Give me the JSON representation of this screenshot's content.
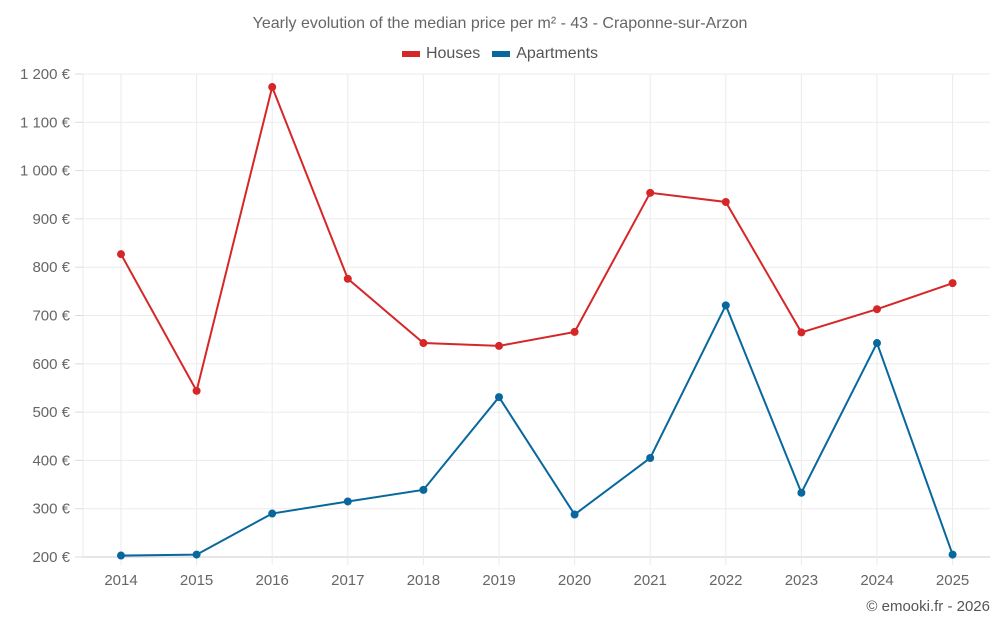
{
  "header": {
    "title": "Yearly evolution of the median price per m² - 43 - Craponne-sur-Arzon"
  },
  "legend": [
    {
      "label": "Houses",
      "color": "#d62728"
    },
    {
      "label": "Apartments",
      "color": "#08689e"
    }
  ],
  "footer": {
    "credit": "© emooki.fr - 2026"
  },
  "chart_data": {
    "type": "line",
    "title": "Yearly evolution of the median price per m² - 43 - Craponne-sur-Arzon",
    "xlabel": "",
    "ylabel": "",
    "categories": [
      "2014",
      "2015",
      "2016",
      "2017",
      "2018",
      "2019",
      "2020",
      "2021",
      "2022",
      "2023",
      "2024",
      "2025"
    ],
    "series": [
      {
        "name": "Houses",
        "color": "#d62728",
        "values": [
          827,
          544,
          1173,
          776,
          643,
          637,
          666,
          954,
          935,
          665,
          713,
          767
        ]
      },
      {
        "name": "Apartments",
        "color": "#08689e",
        "values": [
          203,
          205,
          290,
          315,
          339,
          531,
          288,
          405,
          721,
          333,
          643,
          205
        ]
      }
    ],
    "ylim": [
      200,
      1200
    ],
    "yticks": [
      200,
      300,
      400,
      500,
      600,
      700,
      800,
      900,
      1000,
      1100,
      1200
    ],
    "ytick_labels": [
      "200 €",
      "300 €",
      "400 €",
      "500 €",
      "600 €",
      "700 €",
      "800 €",
      "900 €",
      "1 000 €",
      "1 100 €",
      "1 200 €"
    ],
    "grid": true,
    "legend_position": "top"
  }
}
